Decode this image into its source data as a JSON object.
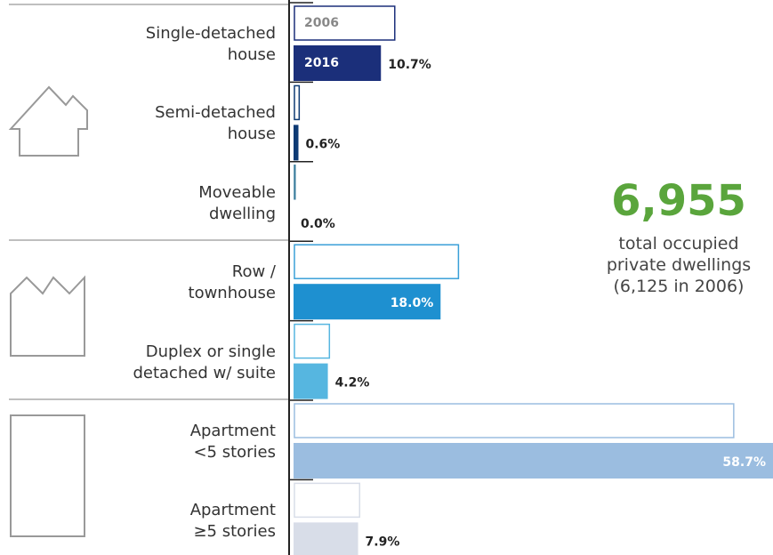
{
  "chart_data": {
    "type": "bar",
    "orientation": "horizontal",
    "categories": [
      "Single-detached\nhouse",
      "Semi-detached\nhouse",
      "Moveable\ndwelling",
      "Row /\ntownhouse",
      "Duplex or single\ndetached w/ suite",
      "Apartment\n<5 stories",
      "Apartment\n≥5 stories"
    ],
    "series": [
      {
        "name": "2006",
        "colors": [
          "#1b2f7a",
          "#0d3a73",
          "#3c7e9e",
          "#3aa0d8",
          "#56b6e0",
          "#9bbde0",
          "#d8dde8"
        ],
        "values": [
          12.5,
          0.8,
          0.3,
          20.3,
          4.5,
          54.0,
          8.2
        ]
      },
      {
        "name": "2016",
        "colors": [
          "#1b2f7a",
          "#0d3a73",
          "#3c7e9e",
          "#1e90d0",
          "#56b6e0",
          "#9bbde0",
          "#d8dde8"
        ],
        "values": [
          10.7,
          0.6,
          0.0,
          18.0,
          4.2,
          58.7,
          7.9
        ],
        "value_labels": [
          "10.7%",
          "0.6%",
          "0.0%",
          "18.0%",
          "4.2%",
          "58.7%",
          "7.9%"
        ]
      }
    ],
    "xlim": [
      0,
      58.7
    ],
    "annotation": {
      "value": "6,955",
      "text": "total occupied\nprivate dwellings\n(6,125 in 2006)",
      "color": "#5aa53c"
    }
  }
}
